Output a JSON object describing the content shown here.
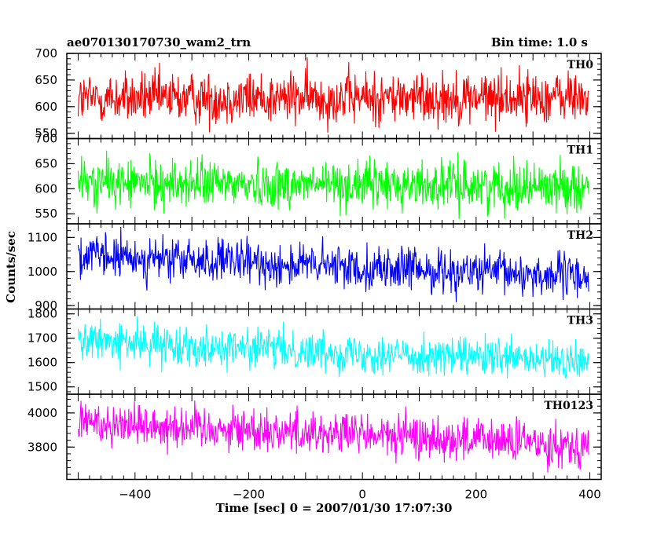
{
  "chart_data": {
    "type": "line",
    "title": "ae070130170730_wam2_trn",
    "bin_time": "Bin time: 1.0 s",
    "xlabel": "Time [sec] 0 = 2007/01/30 17:07:30",
    "ylabel": "Counts/sec",
    "xlim": [
      -520,
      420
    ],
    "x_ticks": [
      -400,
      -200,
      0,
      200,
      400
    ],
    "x_data_range": [
      -500,
      398
    ],
    "grid": false,
    "panels": [
      {
        "name": "TH0",
        "color": "#ff0000",
        "ylim": [
          540,
          700
        ],
        "y_ticks": [
          550,
          600,
          650,
          700
        ],
        "mean_start": 615,
        "mean_end": 618,
        "noise": 25
      },
      {
        "name": "TH1",
        "color": "#00ff00",
        "ylim": [
          530,
          700
        ],
        "y_ticks": [
          550,
          600,
          650,
          700
        ],
        "mean_start": 612,
        "mean_end": 605,
        "noise": 24
      },
      {
        "name": "TH2",
        "color": "#0000ff",
        "ylim": [
          890,
          1140
        ],
        "y_ticks": [
          900,
          1000,
          1100
        ],
        "mean_start": 1045,
        "mean_end": 985,
        "noise": 32
      },
      {
        "name": "TH3",
        "color": "#00ffff",
        "ylim": [
          1470,
          1820
        ],
        "y_ticks": [
          1500,
          1600,
          1700,
          1800
        ],
        "mean_start": 1690,
        "mean_end": 1600,
        "noise": 40
      },
      {
        "name": "TH0123",
        "color": "#ff00ff",
        "ylim": [
          3610,
          4110
        ],
        "y_ticks": [
          3800,
          4000
        ],
        "mean_start": 3950,
        "mean_end": 3810,
        "noise": 65
      }
    ]
  }
}
